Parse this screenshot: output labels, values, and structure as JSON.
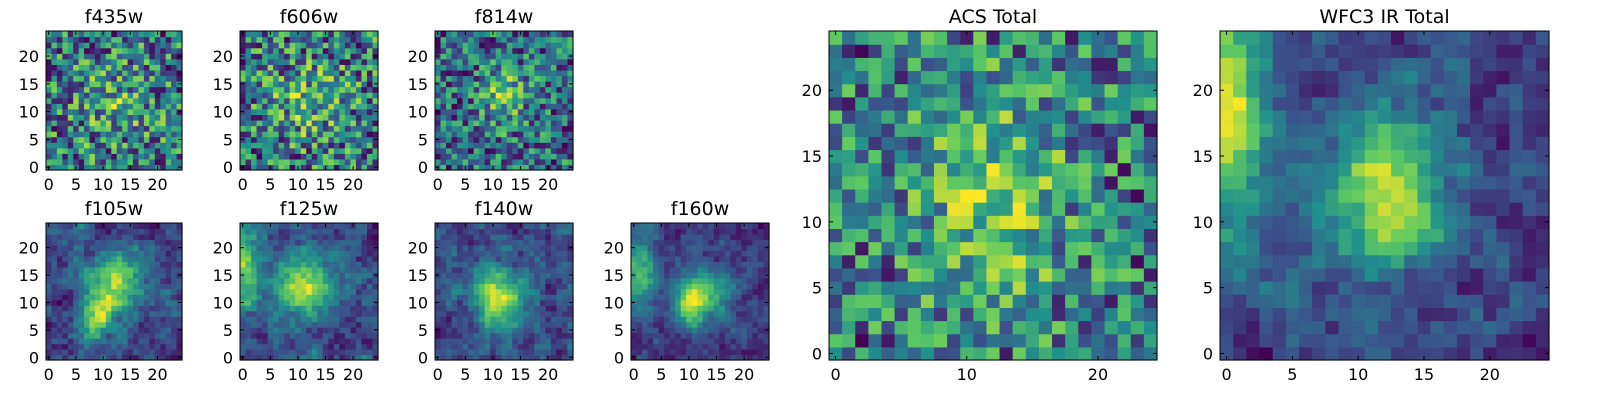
{
  "chart_data": [
    {
      "type": "heatmap",
      "title": "f435w",
      "xlim": [
        0,
        24
      ],
      "ylim": [
        0,
        24
      ],
      "xticks": [
        "0",
        "5",
        "10",
        "15",
        "20"
      ],
      "yticks": [
        "0",
        "5",
        "10",
        "15",
        "20"
      ],
      "seed": 11,
      "peak": [
        0.3
      ],
      "noise": 0.62,
      "gamma": 1.0,
      "smooth": 0
    },
    {
      "type": "heatmap",
      "title": "f606w",
      "xlim": [
        0,
        24
      ],
      "ylim": [
        0,
        24
      ],
      "xticks": [
        "0",
        "5",
        "10",
        "15",
        "20"
      ],
      "yticks": [
        "0",
        "5",
        "10",
        "15",
        "20"
      ],
      "seed": 23,
      "peak": [
        0.35
      ],
      "noise": 0.62,
      "gamma": 1.0,
      "smooth": 0
    },
    {
      "type": "heatmap",
      "title": "f814w",
      "xlim": [
        0,
        24
      ],
      "ylim": [
        0,
        24
      ],
      "xticks": [
        "0",
        "5",
        "10",
        "15",
        "20"
      ],
      "yticks": [
        "0",
        "5",
        "10",
        "15",
        "20"
      ],
      "seed": 37,
      "peak": [
        0.55
      ],
      "noise": 0.58,
      "gamma": 1.0,
      "smooth": 0
    },
    {
      "type": "heatmap",
      "title": "f105w",
      "xlim": [
        0,
        24
      ],
      "ylim": [
        0,
        24
      ],
      "xticks": [
        "0",
        "5",
        "10",
        "15",
        "20"
      ],
      "yticks": [
        "0",
        "5",
        "10",
        "15",
        "20"
      ],
      "seed": 41,
      "peak": [
        0.9
      ],
      "noise": 0.42,
      "gamma": 1.0,
      "smooth": 1
    },
    {
      "type": "heatmap",
      "title": "f125w",
      "xlim": [
        0,
        24
      ],
      "ylim": [
        0,
        24
      ],
      "xticks": [
        "0",
        "5",
        "10",
        "15",
        "20"
      ],
      "yticks": [
        "0",
        "5",
        "10",
        "15",
        "20"
      ],
      "seed": 53,
      "peak": [
        0.9
      ],
      "noise": 0.42,
      "gamma": 1.0,
      "smooth": 1
    },
    {
      "type": "heatmap",
      "title": "f140w",
      "xlim": [
        0,
        24
      ],
      "ylim": [
        0,
        24
      ],
      "xticks": [
        "0",
        "5",
        "10",
        "15",
        "20"
      ],
      "yticks": [
        "0",
        "5",
        "10",
        "15",
        "20"
      ],
      "seed": 67,
      "peak": [
        0.9
      ],
      "noise": 0.4,
      "gamma": 1.0,
      "smooth": 1
    },
    {
      "type": "heatmap",
      "title": "f160w",
      "xlim": [
        0,
        24
      ],
      "ylim": [
        0,
        24
      ],
      "xticks": [
        "0",
        "5",
        "10",
        "15",
        "20"
      ],
      "yticks": [
        "0",
        "5",
        "10",
        "15",
        "20"
      ],
      "seed": 79,
      "peak": [
        1.0
      ],
      "noise": 0.4,
      "gamma": 1.0,
      "smooth": 1
    },
    {
      "type": "heatmap",
      "title": "ACS Total",
      "xlim": [
        0,
        24
      ],
      "ylim": [
        0,
        24
      ],
      "xticks": [
        "0",
        "10",
        "20"
      ],
      "yticks": [
        "0",
        "5",
        "10",
        "15",
        "20"
      ],
      "seed": 97,
      "peak": [
        0.5
      ],
      "noise": 0.5,
      "gamma": 0.8,
      "smooth": 0
    },
    {
      "type": "heatmap",
      "title": "WFC3 IR Total",
      "xlim": [
        0,
        24
      ],
      "ylim": [
        0,
        24
      ],
      "xticks": [
        "0",
        "5",
        "10",
        "15",
        "20"
      ],
      "yticks": [
        "0",
        "5",
        "10",
        "15",
        "20"
      ],
      "seed": 131,
      "peak": [
        1.0
      ],
      "noise": 0.38,
      "gamma": 1.0,
      "smooth": 1
    }
  ],
  "colormap": [
    "#440154",
    "#3b528b",
    "#21918c",
    "#5ec962",
    "#fde725"
  ]
}
